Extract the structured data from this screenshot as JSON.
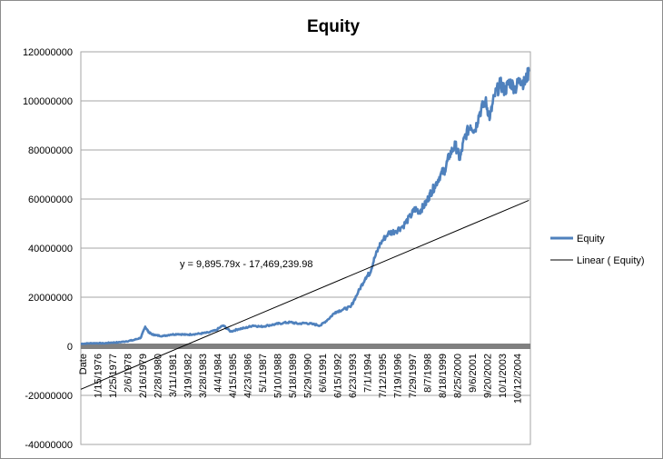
{
  "chart_data": {
    "type": "line",
    "title": "Equity",
    "xlabel": "",
    "ylabel": "",
    "ylim": [
      -40000000,
      120000000
    ],
    "y_ticks": [
      -40000000,
      -20000000,
      0,
      20000000,
      40000000,
      60000000,
      80000000,
      100000000,
      120000000
    ],
    "y_tick_labels": [
      "-40000000",
      "-20000000",
      "0",
      "20000000",
      "40000000",
      "60000000",
      "80000000",
      "100000000",
      "120000000"
    ],
    "x_tick_labels": [
      "Date",
      "1/15/1976",
      "1/25/1977",
      "2/6/1978",
      "2/16/1979",
      "2/28/1980",
      "3/11/1981",
      "3/19/1982",
      "3/28/1983",
      "4/4/1984",
      "4/15/1985",
      "4/23/1986",
      "5/1/1987",
      "5/10/1988",
      "5/18/1989",
      "5/29/1990",
      "6/6/1991",
      "6/15/1992",
      "6/23/1993",
      "7/1/1994",
      "7/12/1995",
      "7/19/1996",
      "7/29/1997",
      "8/7/1998",
      "8/18/1999",
      "8/25/2000",
      "9/6/2001",
      "9/20/2002",
      "10/1/2003",
      "10/12/2004"
    ],
    "grid": true,
    "legend_position": "right",
    "series": [
      {
        "name": "Equity",
        "color": "#4f81bd",
        "x": [
          0,
          0.5,
          1,
          1.5,
          2,
          2.5,
          3,
          3.5,
          4,
          4.3,
          4.5,
          4.7,
          5,
          5.5,
          6,
          6.5,
          7,
          7.5,
          8,
          8.5,
          9,
          9.5,
          10,
          10.5,
          11,
          11.5,
          12,
          12.5,
          13,
          13.5,
          14,
          14.5,
          15,
          15.5,
          16,
          16.5,
          17,
          17.5,
          18,
          18.5,
          19,
          19.3,
          19.6,
          20,
          20.5,
          21,
          21.5,
          22,
          22.3,
          22.6,
          23,
          23.3,
          23.6,
          24,
          24.3,
          24.6,
          25,
          25.3,
          25.6,
          26,
          26.3,
          26.6,
          27,
          27.3,
          27.6,
          28,
          28.3,
          28.6,
          29,
          29.3,
          29.6,
          29.9
        ],
        "values": [
          1000000,
          1200000,
          1300000,
          1200000,
          1500000,
          1600000,
          2000000,
          2500000,
          3500000,
          8000000,
          6000000,
          5000000,
          4500000,
          4200000,
          4800000,
          5000000,
          4700000,
          4900000,
          5200000,
          5600000,
          6500000,
          8500000,
          6000000,
          7000000,
          7500000,
          8500000,
          8000000,
          8500000,
          9000000,
          9500000,
          9800000,
          9200000,
          9500000,
          9000000,
          8500000,
          11000000,
          14000000,
          15000000,
          16000000,
          22000000,
          28000000,
          30000000,
          36000000,
          42000000,
          46000000,
          47000000,
          49000000,
          53000000,
          56000000,
          55000000,
          58000000,
          62000000,
          65000000,
          70000000,
          72000000,
          78000000,
          82000000,
          76000000,
          85000000,
          90000000,
          88000000,
          95000000,
          100000000,
          93000000,
          102000000,
          107000000,
          104000000,
          108000000,
          105000000,
          109000000,
          107000000,
          112000000
        ]
      },
      {
        "name": "Linear ( Equity)",
        "color": "#000000",
        "x": [
          0,
          29.9
        ],
        "values": [
          -17500000,
          59500000
        ]
      }
    ],
    "trendline_equation": "y = 9,895.79x - 17,469,239.98"
  }
}
